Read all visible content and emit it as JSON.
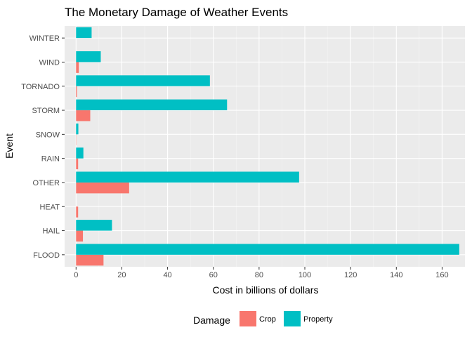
{
  "chart_data": {
    "type": "bar",
    "orientation": "horizontal",
    "title": "The Monetary Damage of Weather Events",
    "xlabel": "Cost in billions of dollars",
    "ylabel": "Event",
    "xlim": [
      -5,
      170
    ],
    "xticks": [
      0,
      20,
      40,
      60,
      80,
      100,
      120,
      140,
      160
    ],
    "grid": true,
    "categories": [
      "FLOOD",
      "HAIL",
      "HEAT",
      "OTHER",
      "RAIN",
      "SNOW",
      "STORM",
      "TORNADO",
      "WIND",
      "WINTER"
    ],
    "series": [
      {
        "name": "Crop",
        "color": "#F8766D",
        "values": [
          12.0,
          3.0,
          0.9,
          23.2,
          0.9,
          0.1,
          6.2,
          0.4,
          1.2,
          0.0
        ]
      },
      {
        "name": "Property",
        "color": "#00BFC4",
        "values": [
          167.5,
          15.7,
          0.0,
          97.5,
          3.2,
          1.0,
          66.0,
          58.5,
          10.8,
          6.8
        ]
      }
    ],
    "legend": {
      "title": "Damage",
      "position": "bottom"
    },
    "colors": {
      "panel": "#EBEBEB",
      "grid_major": "#FFFFFF",
      "grid_minor": "#F5F5F5",
      "tick": "#333333"
    }
  }
}
